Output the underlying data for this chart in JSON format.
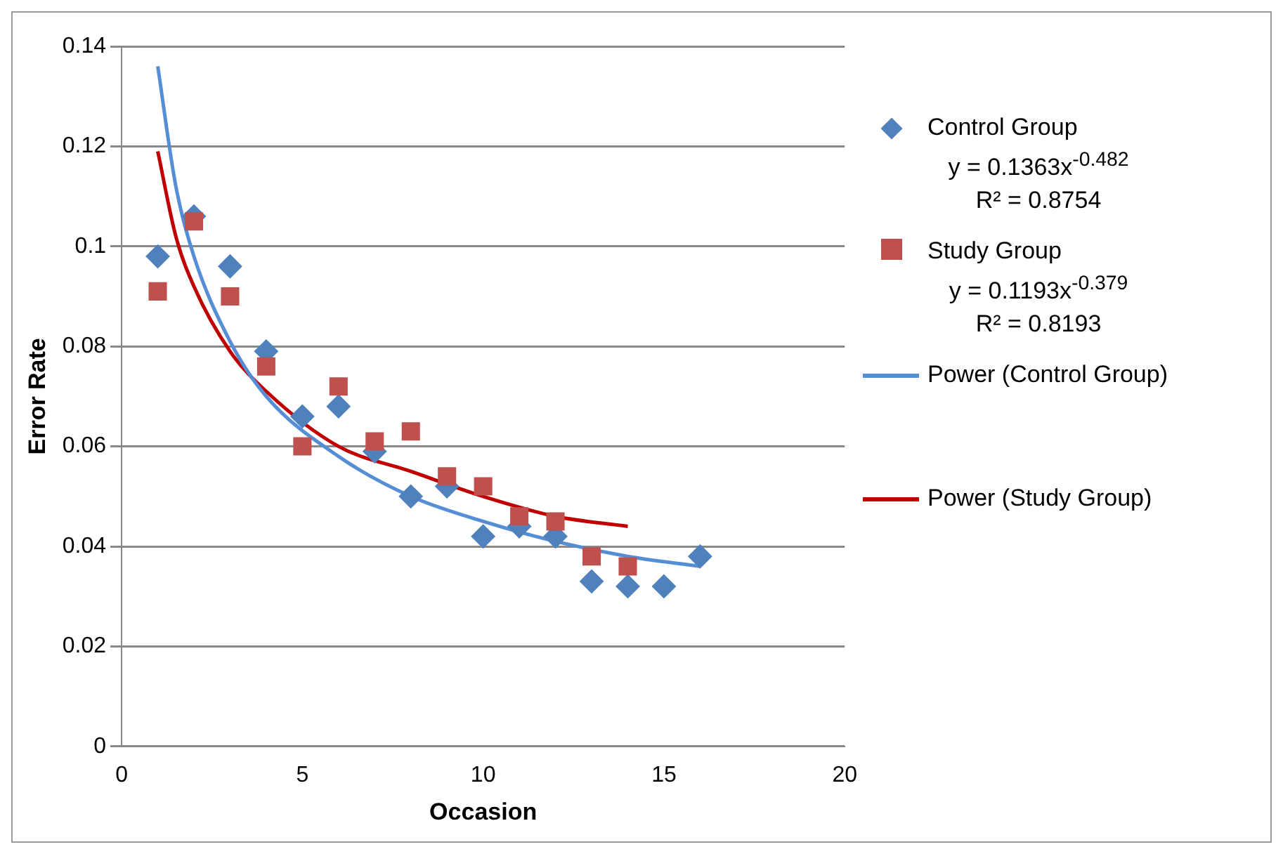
{
  "chart_data": {
    "type": "scatter",
    "xlabel": "Occasion",
    "ylabel": "Error Rate",
    "xlim": [
      0,
      20
    ],
    "xticks": [
      0,
      5,
      10,
      15,
      20
    ],
    "ylim": [
      0,
      0.14
    ],
    "yticks": [
      0,
      0.02,
      0.04,
      0.06,
      0.08,
      0.1,
      0.12,
      0.14
    ],
    "grid": "y",
    "legend": "right",
    "series": [
      {
        "name": "Control Group",
        "marker": "diamond",
        "color": "#4f81bd",
        "x": [
          1,
          2,
          3,
          4,
          5,
          6,
          7,
          8,
          9,
          10,
          11,
          12,
          13,
          14,
          15,
          16
        ],
        "values": [
          0.098,
          0.106,
          0.096,
          0.079,
          0.066,
          0.068,
          0.059,
          0.05,
          0.052,
          0.042,
          0.044,
          0.042,
          0.033,
          0.032,
          0.032,
          0.038
        ]
      },
      {
        "name": "Study Group",
        "marker": "square",
        "color": "#c0504d",
        "x": [
          1,
          2,
          3,
          4,
          5,
          6,
          7,
          8,
          9,
          10,
          11,
          12,
          13,
          14
        ],
        "values": [
          0.091,
          0.105,
          0.09,
          0.076,
          0.06,
          0.072,
          0.061,
          0.063,
          0.054,
          0.052,
          0.046,
          0.045,
          0.038,
          0.036
        ]
      },
      {
        "name": "Power (Control Group)",
        "type": "line",
        "marker": "none",
        "color": "#558ed5",
        "x": [
          1,
          1.5,
          2,
          3,
          4,
          6,
          8,
          10,
          12,
          14,
          16
        ],
        "values": [
          0.136,
          0.112,
          0.098,
          0.081,
          0.07,
          0.058,
          0.05,
          0.045,
          0.041,
          0.038,
          0.036
        ]
      },
      {
        "name": "Power (Study Group)",
        "type": "line",
        "marker": "none",
        "color": "#c00000",
        "x": [
          1,
          1.5,
          2,
          3,
          4,
          6,
          8,
          10,
          12,
          14
        ],
        "values": [
          0.119,
          0.102,
          0.092,
          0.079,
          0.071,
          0.06,
          0.055,
          0.05,
          0.046,
          0.044
        ]
      }
    ],
    "annotations": [
      "y = 0.1363x$^{-0.482}$",
      "R² = 0.8754",
      "y = 0.1193x$^{-0.379}$",
      "R² = 0.8193"
    ]
  }
}
